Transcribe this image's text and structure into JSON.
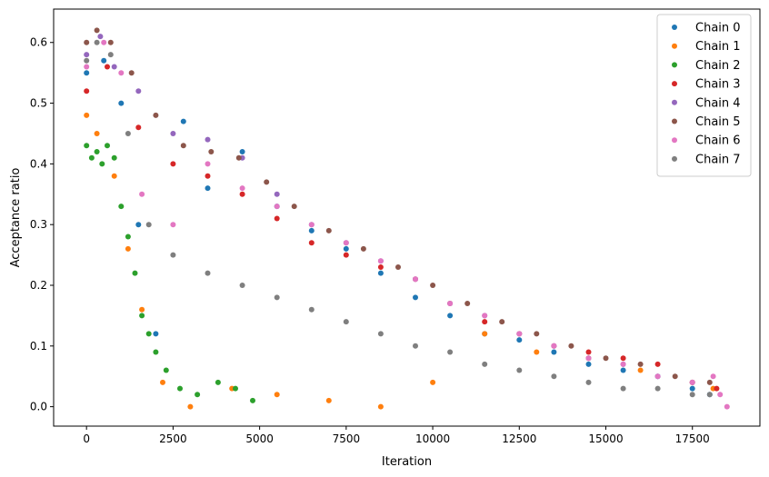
{
  "chart_data": {
    "type": "scatter",
    "title": "",
    "xlabel": "Iteration",
    "ylabel": "Acceptance ratio",
    "xlim": [
      -950,
      19450
    ],
    "ylim": [
      -0.032,
      0.655
    ],
    "xticks": [
      0,
      2500,
      5000,
      7500,
      10000,
      12500,
      15000,
      17500
    ],
    "xtick_labels": [
      "0",
      "2500",
      "5000",
      "7500",
      "10000",
      "12500",
      "15000",
      "17500"
    ],
    "yticks": [
      0.0,
      0.1,
      0.2,
      0.3,
      0.4,
      0.5,
      0.6
    ],
    "ytick_labels": [
      "0.0",
      "0.1",
      "0.2",
      "0.3",
      "0.4",
      "0.5",
      "0.6"
    ],
    "grid": false,
    "legend_position": "top-right",
    "series": [
      {
        "name": "Chain 0",
        "color": "#1f77b4",
        "x": [
          0,
          500,
          1000,
          1500,
          2000,
          2800,
          3500,
          4500,
          5500,
          6500,
          7500,
          8500,
          9500,
          10500,
          11500,
          12500,
          13500,
          14500,
          15500,
          16500,
          17500,
          18000
        ],
        "y": [
          0.55,
          0.57,
          0.5,
          0.3,
          0.12,
          0.47,
          0.36,
          0.42,
          0.33,
          0.29,
          0.26,
          0.22,
          0.18,
          0.15,
          0.12,
          0.11,
          0.09,
          0.07,
          0.06,
          0.05,
          0.03,
          0.02
        ]
      },
      {
        "name": "Chain 1",
        "color": "#ff7f0e",
        "x": [
          0,
          300,
          800,
          1200,
          1600,
          2200,
          3000,
          4200,
          5500,
          7000,
          8500,
          10000,
          11500,
          13000,
          14500,
          16000,
          17500,
          18100
        ],
        "y": [
          0.48,
          0.45,
          0.38,
          0.26,
          0.16,
          0.04,
          0.0,
          0.03,
          0.02,
          0.01,
          0.0,
          0.04,
          0.12,
          0.09,
          0.08,
          0.06,
          0.04,
          0.03
        ]
      },
      {
        "name": "Chain 2",
        "color": "#2ca02c",
        "x": [
          0,
          150,
          300,
          450,
          600,
          800,
          1000,
          1200,
          1400,
          1600,
          1800,
          2000,
          2300,
          2700,
          3200,
          3800,
          4300,
          4800
        ],
        "y": [
          0.43,
          0.41,
          0.42,
          0.4,
          0.43,
          0.41,
          0.33,
          0.28,
          0.22,
          0.15,
          0.12,
          0.09,
          0.06,
          0.03,
          0.02,
          0.04,
          0.03,
          0.01
        ]
      },
      {
        "name": "Chain 3",
        "color": "#d62728",
        "x": [
          0,
          600,
          1500,
          2500,
          3500,
          4500,
          5500,
          6500,
          7500,
          8500,
          9500,
          10500,
          11500,
          12500,
          13500,
          14500,
          15500,
          16500,
          17500,
          18200
        ],
        "y": [
          0.52,
          0.56,
          0.46,
          0.4,
          0.38,
          0.35,
          0.31,
          0.27,
          0.25,
          0.23,
          0.21,
          0.17,
          0.14,
          0.12,
          0.1,
          0.09,
          0.08,
          0.07,
          0.04,
          0.03
        ]
      },
      {
        "name": "Chain 4",
        "color": "#9467bd",
        "x": [
          0,
          400,
          800,
          1500,
          2500,
          3500,
          4500,
          5500,
          6500,
          7500,
          8500,
          9500,
          10500,
          11500,
          12500,
          13500,
          14500,
          15500,
          16500,
          17500
        ],
        "y": [
          0.58,
          0.61,
          0.56,
          0.52,
          0.45,
          0.44,
          0.41,
          0.35,
          0.3,
          0.27,
          0.24,
          0.21,
          0.17,
          0.15,
          0.12,
          0.1,
          0.08,
          0.07,
          0.05,
          0.04
        ]
      },
      {
        "name": "Chain 5",
        "color": "#8c564b",
        "x": [
          0,
          300,
          700,
          1300,
          2000,
          2800,
          3600,
          4400,
          5200,
          6000,
          7000,
          8000,
          9000,
          10000,
          11000,
          12000,
          13000,
          14000,
          15000,
          16000,
          17000,
          18000
        ],
        "y": [
          0.6,
          0.62,
          0.6,
          0.55,
          0.48,
          0.43,
          0.42,
          0.41,
          0.37,
          0.33,
          0.29,
          0.26,
          0.23,
          0.2,
          0.17,
          0.14,
          0.12,
          0.1,
          0.08,
          0.07,
          0.05,
          0.04
        ]
      },
      {
        "name": "Chain 6",
        "color": "#e377c2",
        "x": [
          0,
          500,
          1000,
          1600,
          2500,
          3500,
          4500,
          5500,
          6500,
          7500,
          8500,
          9500,
          10500,
          11500,
          12500,
          13500,
          14500,
          15500,
          16500,
          17500,
          18100,
          18300,
          18500
        ],
        "y": [
          0.56,
          0.6,
          0.55,
          0.35,
          0.3,
          0.4,
          0.36,
          0.33,
          0.3,
          0.27,
          0.24,
          0.21,
          0.17,
          0.15,
          0.12,
          0.1,
          0.08,
          0.07,
          0.05,
          0.04,
          0.05,
          0.02,
          0.0
        ]
      },
      {
        "name": "Chain 7",
        "color": "#7f7f7f",
        "x": [
          0,
          300,
          700,
          1200,
          1800,
          2500,
          3500,
          4500,
          5500,
          6500,
          7500,
          8500,
          9500,
          10500,
          11500,
          12500,
          13500,
          14500,
          15500,
          16500,
          17500,
          18000
        ],
        "y": [
          0.57,
          0.6,
          0.58,
          0.45,
          0.3,
          0.25,
          0.22,
          0.2,
          0.18,
          0.16,
          0.14,
          0.12,
          0.1,
          0.09,
          0.07,
          0.06,
          0.05,
          0.04,
          0.03,
          0.03,
          0.02,
          0.02
        ]
      }
    ]
  }
}
